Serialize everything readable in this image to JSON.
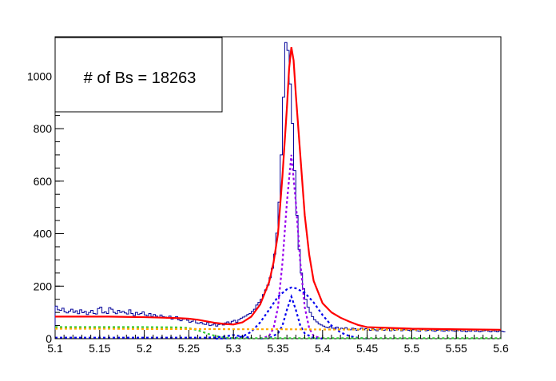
{
  "chart_data": {
    "type": "line",
    "title": "",
    "xlabel": "",
    "ylabel": "",
    "xlim": [
      5.1,
      5.6
    ],
    "ylim": [
      0,
      1150
    ],
    "xticks": [
      "5.1",
      "5.15",
      "5.2",
      "5.25",
      "5.3",
      "5.35",
      "5.4",
      "5.45",
      "5.5",
      "5.55",
      "5.6"
    ],
    "yticks": [
      "0",
      "200",
      "400",
      "600",
      "800",
      "1000"
    ],
    "legend_text": "# of Bs = 18263",
    "histogram": {
      "color": "#000099",
      "bin_width": 0.0025,
      "x_start": 5.1,
      "values": [
        124,
        110,
        108,
        116,
        102,
        98,
        105,
        112,
        100,
        106,
        95,
        110,
        99,
        104,
        92,
        100,
        108,
        96,
        94,
        115,
        120,
        98,
        102,
        96,
        118,
        112,
        100,
        95,
        108,
        100,
        104,
        98,
        94,
        110,
        96,
        88,
        100,
        92,
        96,
        102,
        90,
        88,
        96,
        84,
        92,
        86,
        80,
        90,
        84,
        82,
        78,
        86,
        74,
        80,
        84,
        72,
        68,
        74,
        76,
        70,
        62,
        66,
        72,
        60,
        58,
        62,
        56,
        54,
        62,
        50,
        52,
        56,
        48,
        54,
        58,
        52,
        60,
        64,
        58,
        66,
        70,
        62,
        72,
        78,
        82,
        86,
        92,
        96,
        104,
        112,
        128,
        138,
        150,
        168,
        186,
        204,
        232,
        268,
        322,
        402,
        520,
        700,
        920,
        1128,
        1098,
        970,
        820,
        640,
        470,
        340,
        250,
        190,
        150,
        120,
        100,
        84,
        72,
        64,
        56,
        52,
        48,
        44,
        42,
        46,
        40,
        38,
        44,
        36,
        40,
        38,
        42,
        36,
        34,
        40,
        38,
        32,
        36,
        40,
        34,
        38,
        36,
        32,
        38,
        34,
        30,
        36,
        40,
        32,
        34,
        38,
        30,
        36,
        32,
        34,
        38,
        30,
        34,
        36,
        32,
        30,
        34,
        38,
        30,
        28,
        34,
        36,
        30,
        32,
        34,
        30,
        28,
        32,
        36,
        30,
        28,
        32,
        30,
        34,
        30,
        28,
        30,
        32,
        28,
        30,
        26,
        30,
        28,
        32,
        28,
        30,
        26,
        28,
        30,
        32,
        28,
        26,
        30,
        28,
        26,
        30,
        28,
        26
      ]
    },
    "series": [
      {
        "name": "",
        "color": "#ff0000",
        "style": "solid",
        "x": [
          5.1,
          5.12,
          5.14,
          5.16,
          5.18,
          5.2,
          5.22,
          5.24,
          5.25,
          5.26,
          5.27,
          5.28,
          5.29,
          5.3,
          5.31,
          5.32,
          5.33,
          5.34,
          5.345,
          5.35,
          5.355,
          5.36,
          5.3625,
          5.365,
          5.3675,
          5.37,
          5.375,
          5.38,
          5.385,
          5.39,
          5.4,
          5.41,
          5.42,
          5.43,
          5.44,
          5.45,
          5.5,
          5.55,
          5.6
        ],
        "y": [
          84,
          84,
          84,
          84,
          83,
          82,
          80,
          78,
          76,
          72,
          66,
          60,
          56,
          54,
          62,
          84,
          130,
          215,
          290,
          400,
          620,
          880,
          1030,
          1110,
          1060,
          930,
          700,
          470,
          320,
          220,
          135,
          100,
          80,
          65,
          52,
          44,
          38,
          36,
          34
        ]
      },
      {
        "name": "",
        "color": "#9900ee",
        "style": "dotted",
        "x": [
          5.33,
          5.34,
          5.345,
          5.35,
          5.355,
          5.36,
          5.365,
          5.37,
          5.375,
          5.38,
          5.385,
          5.39,
          5.4
        ],
        "y": [
          0,
          10,
          40,
          120,
          290,
          520,
          700,
          520,
          290,
          120,
          40,
          10,
          0
        ]
      },
      {
        "name": "",
        "color": "#0000ee",
        "style": "dotted",
        "x": [
          5.28,
          5.3,
          5.31,
          5.32,
          5.33,
          5.34,
          5.35,
          5.36,
          5.365,
          5.37,
          5.38,
          5.39,
          5.4,
          5.41,
          5.42,
          5.43,
          5.44,
          5.45
        ],
        "y": [
          0,
          2,
          8,
          26,
          62,
          110,
          160,
          188,
          195,
          192,
          175,
          138,
          90,
          50,
          24,
          10,
          3,
          0
        ]
      },
      {
        "name": "",
        "color": "#0000ee",
        "style": "dotted",
        "x": [
          5.33,
          5.34,
          5.35,
          5.355,
          5.36,
          5.365,
          5.37,
          5.375,
          5.38,
          5.39,
          5.4
        ],
        "y": [
          0,
          2,
          20,
          50,
          110,
          160,
          110,
          50,
          20,
          2,
          0
        ]
      },
      {
        "name": "",
        "color": "#33cc33",
        "style": "dotted",
        "x": [
          5.1,
          5.15,
          5.2,
          5.24,
          5.25,
          5.26,
          5.27,
          5.28,
          5.29,
          5.3,
          5.35,
          5.4,
          5.45,
          5.5,
          5.55,
          5.6
        ],
        "y": [
          44,
          44,
          44,
          43,
          40,
          32,
          20,
          10,
          4,
          2,
          2,
          2,
          2,
          2,
          2,
          2
        ]
      },
      {
        "name": "",
        "color": "#ffaa00",
        "style": "dotted",
        "x": [
          5.1,
          5.15,
          5.2,
          5.25,
          5.3,
          5.35,
          5.4,
          5.45,
          5.5,
          5.55,
          5.6
        ],
        "y": [
          38,
          38,
          37,
          37,
          36,
          36,
          35,
          35,
          34,
          34,
          33
        ]
      },
      {
        "name": "",
        "color": "#0000ee",
        "style": "dotted",
        "x": [
          5.1,
          5.15,
          5.2,
          5.25,
          5.27,
          5.28,
          5.29,
          5.3,
          5.31,
          5.32
        ],
        "y": [
          4,
          4,
          4,
          4,
          4,
          5,
          8,
          14,
          8,
          3
        ]
      }
    ]
  }
}
